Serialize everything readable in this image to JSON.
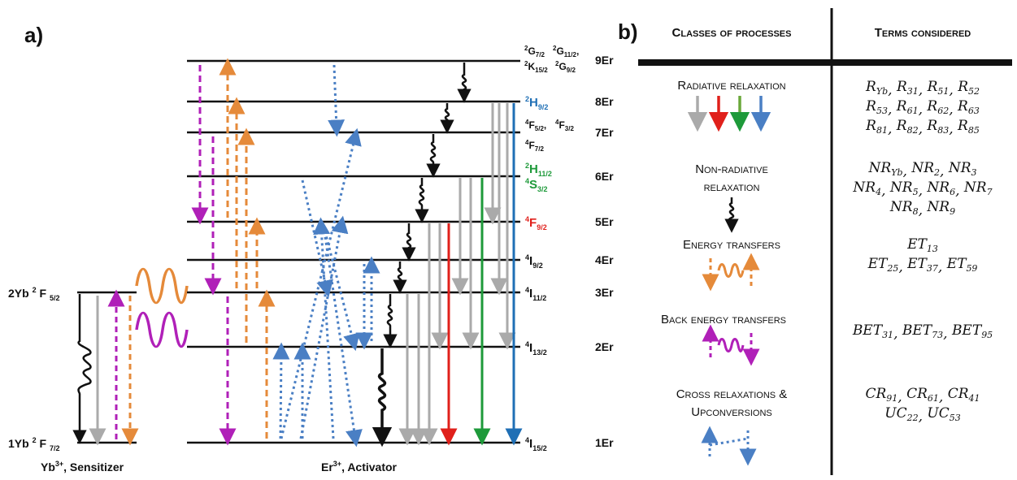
{
  "panel_a": {
    "label": "a)",
    "yb_levels": [
      {
        "name": "2Yb",
        "term_main": "F",
        "term_sup": "2",
        "term_sub": "5/2"
      },
      {
        "name": "1Yb",
        "term_main": "F",
        "term_sup": "2",
        "term_sub": "7/2"
      }
    ],
    "er_levels": [
      {
        "name": "9Er"
      },
      {
        "name": "8Er",
        "term_sup": "2",
        "term_main": "H",
        "term_sub": "9/2",
        "color": "#1f6fb5"
      },
      {
        "name": "7Er"
      },
      {
        "name": "6Er"
      },
      {
        "name": "5Er",
        "term_sup": "4",
        "term_main": "F",
        "term_sub": "9/2",
        "color": "#e0201b"
      },
      {
        "name": "4Er",
        "term_sup": "4",
        "term_main": "I",
        "term_sub": "9/2",
        "color": "#111111"
      },
      {
        "name": "3Er",
        "term_sup": "4",
        "term_main": "I",
        "term_sub": "11/2",
        "color": "#111111"
      },
      {
        "name": "2Er",
        "term_sup": "4",
        "term_main": "I",
        "term_sub": "13/2",
        "color": "#111111"
      },
      {
        "name": "1Er",
        "term_sup": "4",
        "term_main": "I",
        "term_sub": "15/2",
        "color": "#111111"
      }
    ],
    "level9_terms": {
      "t1": {
        "sup": "2",
        "main": "G",
        "sub": "7/2"
      },
      "t2": {
        "sup": "2",
        "main": "G",
        "sub": "11/2",
        "suffix": ","
      },
      "t3": {
        "sup": "2",
        "main": "K",
        "sub": "15/2"
      },
      "t4": {
        "sup": "2",
        "main": "G",
        "sub": "9/2"
      }
    },
    "level7_terms": {
      "t1": {
        "sup": "4",
        "main": "F",
        "sub": "5/2",
        "suffix": ","
      },
      "t2": {
        "sup": "4",
        "main": "F",
        "sub": "3/2"
      }
    },
    "level6_upper": {
      "sup": "4",
      "main": "F",
      "sub": "7/2"
    },
    "level6_terms": {
      "t1": {
        "sup": "2",
        "main": "H",
        "sub": "11/2",
        "color": "#1e9a3a"
      },
      "t2": {
        "sup": "4",
        "main": "S",
        "sub": "3/2",
        "color": "#1e9a3a"
      }
    },
    "yb_caption": {
      "sup": "3+",
      "prefix": "Yb",
      "suffix": ", Sensitizer"
    },
    "er_caption": {
      "sup": "3+",
      "prefix": "Er",
      "suffix": ", Activator"
    },
    "colors": {
      "grey": "#aaaaaa",
      "orange": "#e58a3a",
      "magenta": "#b020b8",
      "blue": "#4a7fc4",
      "red": "#e0201b",
      "green": "#1e9a3a",
      "darkblue": "#1f6fb5"
    }
  },
  "panel_b": {
    "label": "b)",
    "headers": {
      "left": "Classes of processes",
      "right": "Terms considered"
    },
    "rows": [
      {
        "class_lines": [
          "Radiative relaxation"
        ],
        "terms": [
          [
            [
              "R",
              "Yb"
            ],
            [
              "R",
              "31"
            ],
            [
              "R",
              "51"
            ],
            [
              "R",
              "52"
            ]
          ],
          [
            [
              "R",
              "53"
            ],
            [
              "R",
              "61"
            ],
            [
              "R",
              "62"
            ],
            [
              "R",
              "63"
            ]
          ],
          [
            [
              "R",
              "81"
            ],
            [
              "R",
              "82"
            ],
            [
              "R",
              "83"
            ],
            [
              "R",
              "85"
            ]
          ]
        ]
      },
      {
        "class_lines": [
          "Non-radiative",
          "relaxation"
        ],
        "terms": [
          [
            [
              "NR",
              "Yb"
            ],
            [
              "NR",
              "2"
            ],
            [
              "NR",
              "3"
            ]
          ],
          [
            [
              "NR",
              "4"
            ],
            [
              "NR",
              "5"
            ],
            [
              "NR",
              "6"
            ],
            [
              "NR",
              "7"
            ]
          ],
          [
            [
              "NR",
              "8"
            ],
            [
              "NR",
              "9"
            ]
          ]
        ]
      },
      {
        "class_lines": [
          "Energy transfers"
        ],
        "terms": [
          [
            [
              "ET",
              "13"
            ]
          ],
          [
            [
              "ET",
              "25"
            ],
            [
              "ET",
              "37"
            ],
            [
              "ET",
              "59"
            ]
          ]
        ]
      },
      {
        "class_lines": [
          "Back energy transfers"
        ],
        "terms": [
          [
            [
              "BET",
              "31"
            ],
            [
              "BET",
              "73"
            ],
            [
              "BET",
              "95"
            ]
          ]
        ]
      },
      {
        "class_lines": [
          "Cross relaxations  &",
          "Upconversions"
        ],
        "terms": [
          [
            [
              "CR",
              "91"
            ],
            [
              "CR",
              "61"
            ],
            [
              "CR",
              "41"
            ]
          ],
          [
            [
              "UC",
              "22"
            ],
            [
              "UC",
              "53"
            ]
          ]
        ]
      }
    ]
  }
}
